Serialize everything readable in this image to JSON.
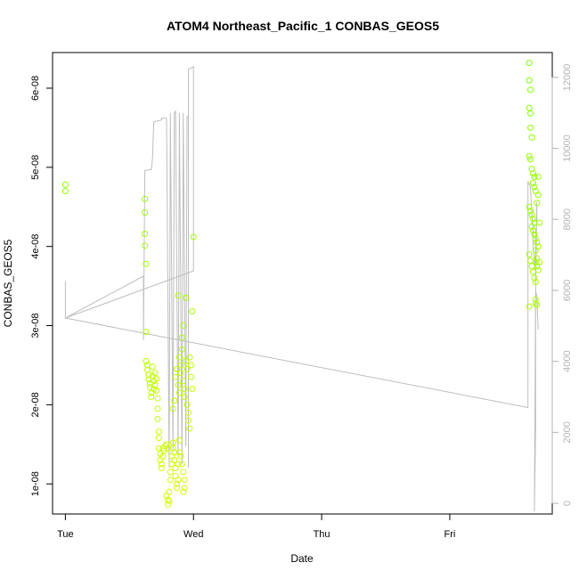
{
  "chart_data": {
    "type": "scatter",
    "title": "ATOM4 Northeast_Pacific_1 CONBAS_GEOS5",
    "xlabel": "Date",
    "ylabel": "CONBAS_GEOS5",
    "x_ticks": [
      "Tue",
      "Wed",
      "Thu",
      "Fri"
    ],
    "xlim_days": [
      -0.1,
      3.8
    ],
    "y_ticks": [
      "1e-08",
      "2e-08",
      "3e-08",
      "4e-08",
      "5e-08",
      "6e-08"
    ],
    "y_tick_values": [
      1e-08,
      2e-08,
      3e-08,
      4e-08,
      5e-08,
      6e-08
    ],
    "ylim": [
      6.2e-09,
      6.45e-08
    ],
    "y2_ticks": [
      "0",
      "2000",
      "4000",
      "6000",
      "8000",
      "10000",
      "12000"
    ],
    "y2_tick_values": [
      0,
      2000,
      4000,
      6000,
      8000,
      10000,
      12000
    ],
    "y2lim": [
      -300,
      12700
    ],
    "colors": {
      "low": "#d4ff00",
      "high": "#7fff00",
      "line": "#bebebe",
      "axis": "#000000",
      "right_axis": "#b3b3b3"
    },
    "series": [
      {
        "type": "scatter",
        "points": [
          [
            0.0,
            4.78e-08
          ],
          [
            0.0,
            4.7e-08
          ],
          [
            0.62,
            4.6e-08
          ],
          [
            0.62,
            4.43e-08
          ],
          [
            0.62,
            4.16e-08
          ],
          [
            0.62,
            4.01e-08
          ],
          [
            0.63,
            3.78e-08
          ],
          [
            0.63,
            2.92e-08
          ],
          [
            0.63,
            2.55e-08
          ],
          [
            0.64,
            2.5e-08
          ],
          [
            0.64,
            2.44e-08
          ],
          [
            0.65,
            2.38e-08
          ],
          [
            0.65,
            2.32e-08
          ],
          [
            0.66,
            2.27e-08
          ],
          [
            0.66,
            2.22e-08
          ],
          [
            0.67,
            2.15e-08
          ],
          [
            0.67,
            2.1e-08
          ],
          [
            0.68,
            2.36e-08
          ],
          [
            0.68,
            2.48e-08
          ],
          [
            0.69,
            2.3e-08
          ],
          [
            0.69,
            2.2e-08
          ],
          [
            0.7,
            2.25e-08
          ],
          [
            0.7,
            2.4e-08
          ],
          [
            0.71,
            2.33e-08
          ],
          [
            0.71,
            2.18e-08
          ],
          [
            0.72,
            2.08e-08
          ],
          [
            0.72,
            1.95e-08
          ],
          [
            0.72,
            1.82e-08
          ],
          [
            0.73,
            1.66e-08
          ],
          [
            0.73,
            1.58e-08
          ],
          [
            0.73,
            1.45e-08
          ],
          [
            0.74,
            1.38e-08
          ],
          [
            0.74,
            1.3e-08
          ],
          [
            0.75,
            1.25e-08
          ],
          [
            0.75,
            1.2e-08
          ],
          [
            0.76,
            1.35e-08
          ],
          [
            0.76,
            1.45e-08
          ],
          [
            0.77,
            1.42e-08
          ],
          [
            0.78,
            1.48e-08
          ],
          [
            0.79,
            1.5e-08
          ],
          [
            0.8,
            1.45e-08
          ],
          [
            0.79,
            8.5e-09
          ],
          [
            0.8,
            8e-09
          ],
          [
            0.8,
            7.4e-09
          ],
          [
            0.81,
            7.8e-09
          ],
          [
            0.81,
            9e-09
          ],
          [
            0.82,
            1.05e-08
          ],
          [
            0.82,
            1.15e-08
          ],
          [
            0.83,
            1.25e-08
          ],
          [
            0.83,
            1.35e-08
          ],
          [
            0.84,
            1.45e-08
          ],
          [
            0.84,
            1.52e-08
          ],
          [
            0.85,
            1.4e-08
          ],
          [
            0.85,
            1.3e-08
          ],
          [
            0.86,
            1.2e-08
          ],
          [
            0.86,
            1.1e-08
          ],
          [
            0.87,
            1e-08
          ],
          [
            0.87,
            9.5e-09
          ],
          [
            0.88,
            1.05e-08
          ],
          [
            0.88,
            1.25e-08
          ],
          [
            0.89,
            1.4e-08
          ],
          [
            0.89,
            1.55e-08
          ],
          [
            0.84,
            1.95e-08
          ],
          [
            0.85,
            2.05e-08
          ],
          [
            0.86,
            2.35e-08
          ],
          [
            0.87,
            2.45e-08
          ],
          [
            0.88,
            2.25e-08
          ],
          [
            0.89,
            2.15e-08
          ],
          [
            0.88,
            3.38e-08
          ],
          [
            0.89,
            2.6e-08
          ],
          [
            0.9,
            2.5e-08
          ],
          [
            0.9,
            2.4e-08
          ],
          [
            0.91,
            2.7e-08
          ],
          [
            0.91,
            2.85e-08
          ],
          [
            0.92,
            3e-08
          ],
          [
            0.92,
            2.3e-08
          ],
          [
            0.93,
            2.2e-08
          ],
          [
            0.93,
            2.1e-08
          ],
          [
            0.94,
            3.35e-08
          ],
          [
            0.94,
            2.55e-08
          ],
          [
            0.95,
            2.45e-08
          ],
          [
            0.95,
            2e-08
          ],
          [
            0.96,
            1.9e-08
          ],
          [
            0.96,
            1.8e-08
          ],
          [
            0.97,
            1.7e-08
          ],
          [
            0.97,
            2.6e-08
          ],
          [
            0.98,
            2.5e-08
          ],
          [
            0.98,
            2.35e-08
          ],
          [
            0.99,
            2.2e-08
          ],
          [
            0.99,
            3.18e-08
          ],
          [
            1.0,
            4.12e-08
          ],
          [
            0.9,
            1.35e-08
          ],
          [
            0.91,
            1.25e-08
          ],
          [
            0.92,
            1.15e-08
          ],
          [
            0.93,
            1.05e-08
          ],
          [
            0.92,
            9e-09
          ],
          [
            0.93,
            9.5e-09
          ],
          [
            3.62,
            6.32e-08
          ],
          [
            3.62,
            6.1e-08
          ],
          [
            3.63,
            5.98e-08
          ],
          [
            3.62,
            5.75e-08
          ],
          [
            3.63,
            5.68e-08
          ],
          [
            3.63,
            5.5e-08
          ],
          [
            3.64,
            5.38e-08
          ],
          [
            3.62,
            5.14e-08
          ],
          [
            3.63,
            5.1e-08
          ],
          [
            3.64,
            4.98e-08
          ],
          [
            3.65,
            4.92e-08
          ],
          [
            3.66,
            4.88e-08
          ],
          [
            3.65,
            4.8e-08
          ],
          [
            3.66,
            4.75e-08
          ],
          [
            3.67,
            4.7e-08
          ],
          [
            3.62,
            4.5e-08
          ],
          [
            3.63,
            4.45e-08
          ],
          [
            3.64,
            4.4e-08
          ],
          [
            3.65,
            4.35e-08
          ],
          [
            3.66,
            4.3e-08
          ],
          [
            3.64,
            4.25e-08
          ],
          [
            3.65,
            4.2e-08
          ],
          [
            3.66,
            4.15e-08
          ],
          [
            3.67,
            4.1e-08
          ],
          [
            3.68,
            4.05e-08
          ],
          [
            3.67,
            3.95e-08
          ],
          [
            3.68,
            3.85e-08
          ],
          [
            3.67,
            3.8e-08
          ],
          [
            3.68,
            3.75e-08
          ],
          [
            3.62,
            3.9e-08
          ],
          [
            3.63,
            3.82e-08
          ],
          [
            3.64,
            3.75e-08
          ],
          [
            3.65,
            3.68e-08
          ],
          [
            3.66,
            3.6e-08
          ],
          [
            3.67,
            3.55e-08
          ],
          [
            3.62,
            3.24e-08
          ],
          [
            3.67,
            3.33e-08
          ],
          [
            3.67,
            3.28e-08
          ],
          [
            3.68,
            3.26e-08
          ],
          [
            3.68,
            4.55e-08
          ],
          [
            3.69,
            4.88e-08
          ],
          [
            3.69,
            4.65e-08
          ],
          [
            3.7,
            4.3e-08
          ],
          [
            3.69,
            4e-08
          ],
          [
            3.7,
            3.8e-08
          ],
          [
            3.69,
            3.7e-08
          ]
        ]
      },
      {
        "type": "line",
        "axis": "right",
        "points": [
          [
            0.0,
            6250
          ],
          [
            0.0,
            5220
          ],
          [
            1.0,
            6550
          ],
          [
            1.0,
            12300
          ],
          [
            0.96,
            12220
          ],
          [
            0.96,
            1000
          ],
          [
            0.96,
            10900
          ],
          [
            0.95,
            10900
          ],
          [
            0.94,
            1600
          ],
          [
            0.92,
            11000
          ],
          [
            0.91,
            1100
          ],
          [
            0.89,
            11000
          ],
          [
            0.88,
            1300
          ],
          [
            0.86,
            11050
          ],
          [
            0.85,
            11000
          ],
          [
            0.84,
            1500
          ],
          [
            0.82,
            11000
          ],
          [
            0.81,
            1000
          ],
          [
            0.79,
            10850
          ],
          [
            0.75,
            10850
          ],
          [
            0.75,
            10800
          ],
          [
            0.69,
            10750
          ],
          [
            0.68,
            9700
          ],
          [
            0.67,
            9400
          ],
          [
            0.62,
            9380
          ],
          [
            0.61,
            4600
          ],
          [
            0.61,
            6400
          ],
          [
            0.0,
            5220
          ],
          [
            3.61,
            2700
          ],
          [
            3.61,
            9050
          ],
          [
            3.62,
            9000
          ],
          [
            3.63,
            8900
          ],
          [
            3.64,
            8200
          ],
          [
            3.65,
            7700
          ],
          [
            3.65,
            7200
          ],
          [
            3.66,
            6900
          ],
          [
            3.66,
            6600
          ],
          [
            3.67,
            7000
          ],
          [
            3.67,
            7500
          ],
          [
            3.68,
            8000
          ],
          [
            3.68,
            8500
          ],
          [
            3.67,
            6000
          ],
          [
            3.67,
            5800
          ],
          [
            3.67,
            2100
          ],
          [
            3.66,
            -230
          ],
          [
            3.67,
            6000
          ],
          [
            3.68,
            5800
          ],
          [
            3.69,
            4900
          ]
        ]
      }
    ]
  }
}
